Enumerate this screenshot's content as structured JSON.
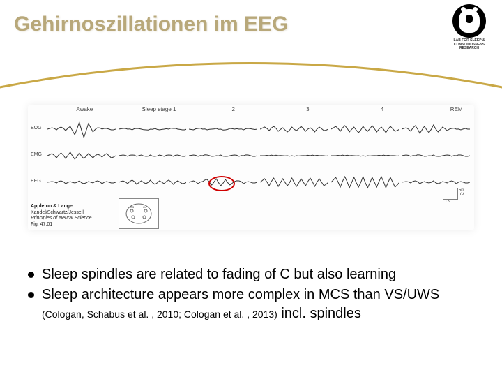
{
  "title": "Gehirnoszillationen im EEG",
  "logo": {
    "lab_text": "LAB FOR SLEEP & CONSCIOUSNESS RESEARCH"
  },
  "arc": {
    "stroke": "#c9a846",
    "width": 3
  },
  "figure": {
    "stage_labels": [
      "Awake",
      "Sleep stage 1",
      "2",
      "3",
      "4",
      "REM"
    ],
    "row_labels": [
      "EOG",
      "EMG",
      "EEG"
    ],
    "spindle_marker": {
      "ring_color": "#d00000",
      "panel_index": 2
    },
    "scale": {
      "time": "1 s",
      "voltage": "50 µV"
    },
    "citation": {
      "publisher": "Appleton & Lange",
      "authors": "Kandel/Schwartz/Jessell",
      "book": "Principles of Neural Science",
      "fig": "Fig. 47.01"
    },
    "trace_color": "#333333",
    "waveforms": {
      "eog": [
        [
          0,
          2,
          -1,
          3,
          -2,
          4,
          -8,
          10,
          -12,
          8,
          -4,
          2,
          0,
          1,
          -1,
          0
        ],
        [
          0,
          1,
          0,
          -1,
          1,
          0,
          -1,
          0,
          1,
          -1,
          0,
          0,
          1,
          0,
          -1,
          0
        ],
        [
          0,
          -1,
          1,
          0,
          -1,
          0,
          1,
          0,
          -1,
          1,
          0,
          0,
          -1,
          1,
          0,
          0
        ],
        [
          0,
          3,
          -2,
          4,
          -3,
          2,
          -4,
          3,
          -2,
          4,
          -3,
          2,
          -4,
          3,
          -2,
          0
        ],
        [
          0,
          4,
          -3,
          5,
          -4,
          3,
          -5,
          4,
          -3,
          5,
          -4,
          3,
          -5,
          4,
          -3,
          0
        ],
        [
          0,
          2,
          -3,
          5,
          -6,
          4,
          -5,
          6,
          -4,
          3,
          -2,
          1,
          0,
          -1,
          1,
          0
        ]
      ],
      "emg": [
        [
          0,
          3,
          -3,
          4,
          -4,
          5,
          -5,
          4,
          -4,
          3,
          -3,
          2,
          -2,
          3,
          -3,
          0
        ],
        [
          0,
          1,
          -1,
          1,
          -1,
          1,
          -1,
          1,
          -1,
          1,
          -1,
          1,
          -1,
          1,
          -1,
          0
        ],
        [
          0,
          1,
          -1,
          0,
          1,
          -1,
          0,
          1,
          -1,
          0,
          1,
          -1,
          0,
          1,
          -1,
          0
        ],
        [
          0,
          0,
          0,
          0,
          0,
          0,
          0,
          0,
          0,
          0,
          0,
          0,
          0,
          0,
          0,
          0
        ],
        [
          0,
          0,
          0,
          0,
          0,
          0,
          0,
          0,
          0,
          0,
          0,
          0,
          0,
          0,
          0,
          0
        ],
        [
          0,
          1,
          -1,
          0,
          1,
          -1,
          0,
          1,
          -1,
          0,
          1,
          -1,
          0,
          1,
          -1,
          0
        ]
      ],
      "eeg": [
        [
          0,
          1,
          -1,
          2,
          -2,
          1,
          -1,
          2,
          -2,
          1,
          -1,
          2,
          -2,
          1,
          -1,
          0
        ],
        [
          0,
          2,
          -2,
          3,
          -3,
          2,
          -2,
          3,
          -3,
          2,
          -2,
          3,
          -3,
          2,
          -2,
          0
        ],
        [
          0,
          2,
          -2,
          1,
          4,
          -4,
          5,
          -5,
          4,
          -4,
          1,
          2,
          -2,
          1,
          -1,
          0
        ],
        [
          0,
          5,
          -5,
          6,
          -6,
          5,
          -5,
          6,
          -6,
          5,
          -5,
          6,
          -6,
          5,
          -5,
          0
        ],
        [
          0,
          7,
          -7,
          8,
          -8,
          7,
          -7,
          8,
          -8,
          7,
          -7,
          8,
          -8,
          7,
          -7,
          0
        ],
        [
          0,
          1,
          -1,
          2,
          -2,
          1,
          -1,
          2,
          -2,
          1,
          -1,
          2,
          -2,
          1,
          -1,
          0
        ]
      ]
    }
  },
  "bullets": [
    {
      "text": "Sleep spindles are related to fading of C but also learning"
    },
    {
      "text": "Sleep architecture appears more complex in MCS than VS/UWS ",
      "citation": "(Cologan, Schabus et al. , 2010; Cologan et al. , 2013)",
      "trailing": " incl. spindles"
    }
  ]
}
